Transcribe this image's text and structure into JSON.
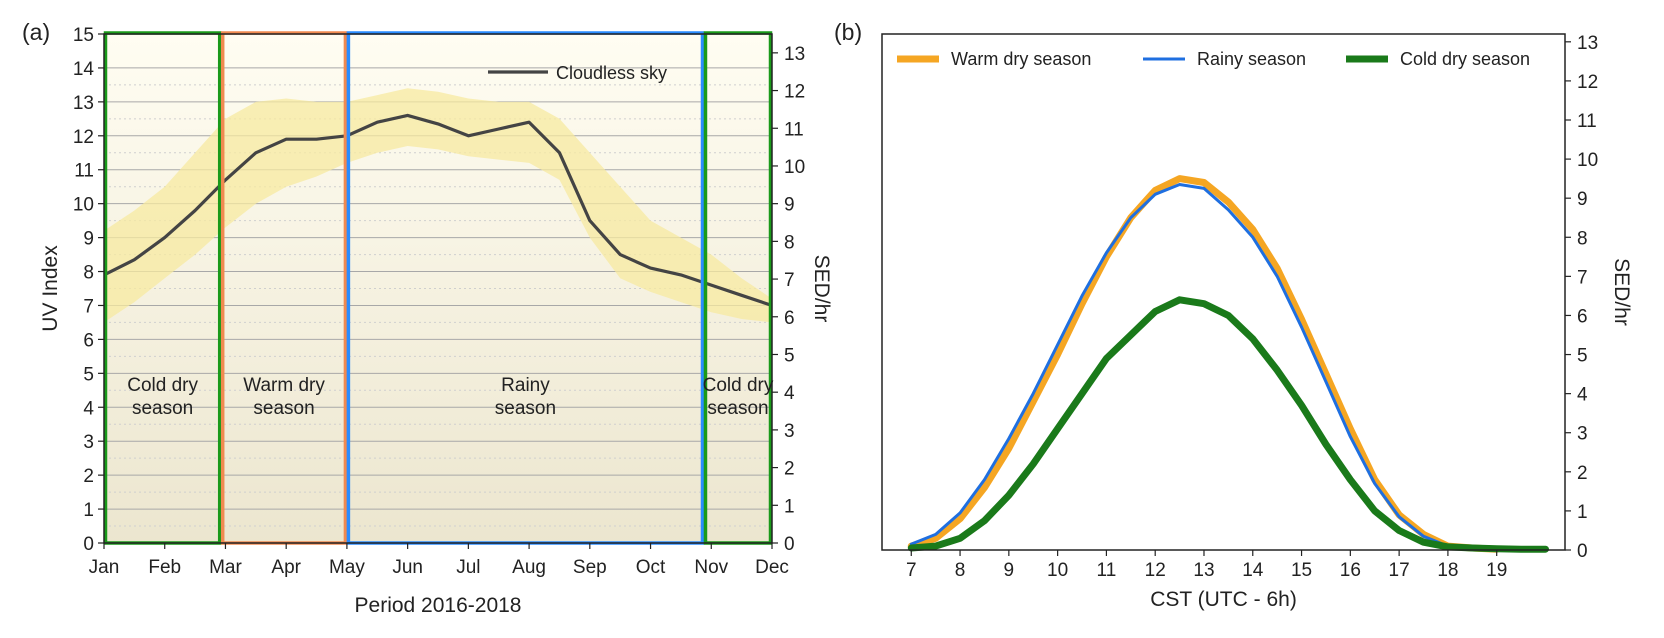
{
  "chart_data": [
    {
      "panel_label": "(a)",
      "type": "line",
      "xlabel": "Period 2016-2018",
      "ylabel": "UV Index",
      "y2label": "SED/hr",
      "x_categories": [
        "Jan",
        "Feb",
        "Mar",
        "Apr",
        "May",
        "Jun",
        "Jul",
        "Aug",
        "Sep",
        "Oct",
        "Nov",
        "Dec"
      ],
      "ylim": [
        0,
        15
      ],
      "yticks": [
        "0",
        "1",
        "2",
        "3",
        "4",
        "5",
        "6",
        "7",
        "8",
        "9",
        "10",
        "11",
        "12",
        "13",
        "14",
        "15"
      ],
      "y2lim": [
        0,
        13.5
      ],
      "y2ticks": [
        "0",
        "1",
        "2",
        "3",
        "4",
        "5",
        "6",
        "7",
        "8",
        "9",
        "10",
        "11",
        "12",
        "13"
      ],
      "grid": true,
      "legend": {
        "position": "top-right",
        "entries": [
          "Cloudless sky"
        ]
      },
      "series": [
        {
          "name": "Cloudless sky",
          "color": "#444444",
          "x": [
            0,
            0.5,
            1,
            1.5,
            2,
            2.5,
            3,
            3.5,
            4,
            4.5,
            5,
            5.5,
            6,
            6.5,
            7,
            7.5,
            8,
            8.5,
            9,
            9.5,
            10,
            10.5,
            11
          ],
          "y": [
            7.9,
            8.35,
            9.0,
            9.8,
            10.7,
            11.5,
            11.9,
            11.9,
            12.0,
            12.4,
            12.6,
            12.35,
            12.0,
            12.2,
            12.4,
            11.5,
            9.5,
            8.5,
            8.1,
            7.9,
            7.6,
            7.3,
            7.0
          ]
        }
      ],
      "band": {
        "color": "#f7e9a0",
        "x": [
          0,
          0.5,
          1,
          1.5,
          2,
          2.5,
          3,
          3.5,
          4,
          4.5,
          5,
          5.5,
          6,
          6.5,
          7,
          7.5,
          8,
          8.5,
          9,
          9.5,
          10,
          10.5,
          11
        ],
        "upper": [
          9.2,
          9.8,
          10.5,
          11.5,
          12.5,
          13.0,
          13.1,
          13.0,
          13.0,
          13.2,
          13.4,
          13.3,
          13.1,
          13.0,
          13.0,
          12.5,
          11.5,
          10.5,
          9.5,
          9.0,
          8.5,
          7.8,
          7.2
        ],
        "lower": [
          6.5,
          7.1,
          7.8,
          8.5,
          9.3,
          10.0,
          10.5,
          10.8,
          11.2,
          11.5,
          11.7,
          11.6,
          11.4,
          11.3,
          11.2,
          10.7,
          9.0,
          7.8,
          7.4,
          7.1,
          6.8,
          6.6,
          6.5
        ]
      },
      "seasons": [
        {
          "line1": "Cold dry",
          "line2": "season",
          "start": 0,
          "end": 1.93,
          "color": "#1a9a1a"
        },
        {
          "line1": "Warm dry",
          "line2": "season",
          "start": 1.93,
          "end": 4.0,
          "color": "#f08a50"
        },
        {
          "line1": "Rainy",
          "line2": "season",
          "start": 4.0,
          "end": 9.88,
          "color": "#2a8cff"
        },
        {
          "line1": "Cold dry",
          "line2": "season",
          "start": 9.88,
          "end": 11,
          "color": "#1a9a1a"
        }
      ]
    },
    {
      "panel_label": "(b)",
      "type": "line",
      "xlabel": "CST (UTC - 6h)",
      "y2label": "SED/hr",
      "xlim": [
        6.4,
        20.4
      ],
      "xticks": [
        "7",
        "8",
        "9",
        "10",
        "11",
        "12",
        "13",
        "14",
        "15",
        "16",
        "17",
        "18",
        "19"
      ],
      "ylim": [
        0,
        13.2
      ],
      "y2ticks": [
        "0",
        "1",
        "2",
        "3",
        "4",
        "5",
        "6",
        "7",
        "8",
        "9",
        "10",
        "11",
        "12",
        "13"
      ],
      "grid": false,
      "legend": {
        "position": "top",
        "entries": [
          "Warm dry season",
          "Rainy season",
          "Cold dry season"
        ]
      },
      "series": [
        {
          "name": "Warm dry season",
          "color": "#f5a623",
          "width": 7,
          "x": [
            7,
            7.5,
            8,
            8.5,
            9,
            9.5,
            10,
            10.5,
            11,
            11.5,
            12,
            12.5,
            13,
            13.5,
            14,
            14.5,
            15,
            15.5,
            16,
            16.5,
            17,
            17.5,
            18,
            18.5,
            19
          ],
          "y": [
            0.1,
            0.3,
            0.8,
            1.6,
            2.6,
            3.8,
            5.0,
            6.3,
            7.5,
            8.5,
            9.2,
            9.5,
            9.4,
            8.9,
            8.2,
            7.2,
            5.9,
            4.5,
            3.1,
            1.8,
            0.9,
            0.4,
            0.1,
            0.05,
            0.02
          ]
        },
        {
          "name": "Rainy season",
          "color": "#1f6fe0",
          "width": 3,
          "x": [
            7,
            7.5,
            8,
            8.5,
            9,
            9.5,
            10,
            10.5,
            11,
            11.5,
            12,
            12.5,
            13,
            13.5,
            14,
            14.5,
            15,
            15.5,
            16,
            16.5,
            17,
            17.5,
            18,
            18.5,
            19
          ],
          "y": [
            0.15,
            0.4,
            0.95,
            1.8,
            2.85,
            4.0,
            5.25,
            6.5,
            7.6,
            8.5,
            9.1,
            9.35,
            9.25,
            8.7,
            8.0,
            7.0,
            5.7,
            4.3,
            2.9,
            1.7,
            0.85,
            0.35,
            0.1,
            0.05,
            0.02
          ]
        },
        {
          "name": "Cold dry season",
          "color": "#1a7a1a",
          "width": 7,
          "x": [
            7,
            7.5,
            8,
            8.5,
            9,
            9.5,
            10,
            10.5,
            11,
            11.5,
            12,
            12.5,
            13,
            13.5,
            14,
            14.5,
            15,
            15.5,
            16,
            16.5,
            17,
            17.5,
            18,
            18.5,
            19,
            19.5,
            20
          ],
          "y": [
            0.05,
            0.1,
            0.3,
            0.75,
            1.4,
            2.2,
            3.1,
            4.0,
            4.9,
            5.5,
            6.1,
            6.4,
            6.3,
            6.0,
            5.4,
            4.6,
            3.7,
            2.7,
            1.8,
            1.0,
            0.5,
            0.2,
            0.08,
            0.05,
            0.03,
            0.02,
            0.02
          ]
        }
      ]
    }
  ]
}
